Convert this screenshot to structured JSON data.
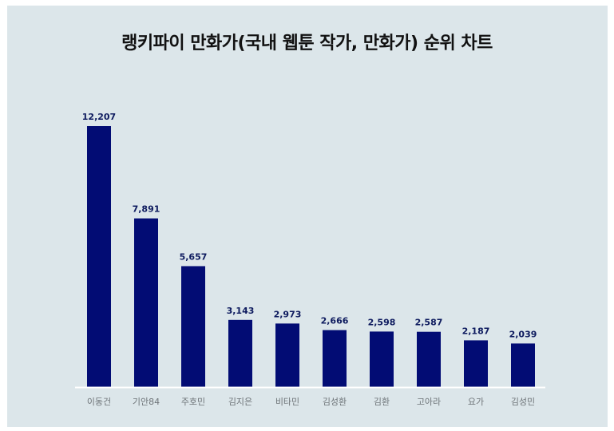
{
  "chart_data": {
    "type": "bar",
    "title": "랭키파이 만화가(국내 웹툰 작가, 만화가) 순위 차트",
    "categories": [
      "이동건",
      "기안84",
      "주호민",
      "김지은",
      "비타민",
      "김성환",
      "김환",
      "고아라",
      "요가",
      "김성민"
    ],
    "values": [
      12207,
      7891,
      5657,
      3143,
      2973,
      2666,
      2598,
      2587,
      2187,
      2039
    ],
    "value_labels": [
      "12,207",
      "7,891",
      "5,657",
      "3,143",
      "2,973",
      "2,666",
      "2,598",
      "2,587",
      "2,187",
      "2,039"
    ],
    "xlabel": "",
    "ylabel": "",
    "ylim": [
      0,
      12207
    ],
    "grid": false,
    "legend": "none",
    "bar_color": "#020c74",
    "background_color": "#dce6ea"
  }
}
